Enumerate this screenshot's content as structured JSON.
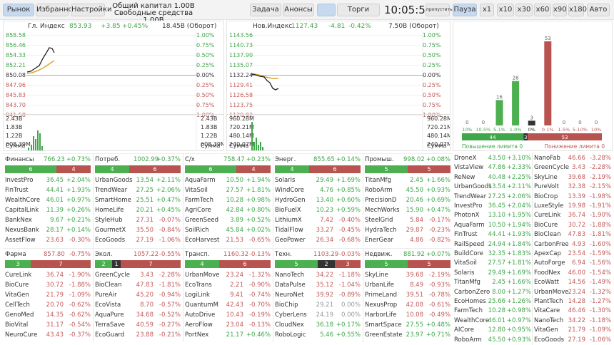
{
  "toolbar": {
    "market": "Рынок",
    "favorites": "Избранное",
    "settings": "Настройки",
    "capital_label": "Общий капитал",
    "capital_value": "1.00B",
    "free_label": "Свободные средства",
    "free_value": "1.00B",
    "task": "Задача",
    "announce": "Анонсы",
    "trading": "Торги",
    "clock": "10:05:55",
    "skip": "пропустить",
    "pause": "Пауза",
    "speeds": [
      "x1",
      "x10",
      "x30",
      "x60",
      "x90",
      "x180"
    ],
    "auto": "Авто"
  },
  "charts": [
    {
      "name": "Гл. Индекс",
      "value": "853.93",
      "change": "+3.85",
      "pct": "+0.45%",
      "turnover": "18.45B (Оборот)",
      "prices": [
        "858.58",
        "856.46",
        "854.33",
        "852.21",
        "850.08",
        "847.96",
        "845.83",
        "843.70",
        "841.58"
      ],
      "pcts": [
        "1.00%",
        "0.75%",
        "0.50%",
        "0.25%",
        "0.00%",
        "0.25%",
        "0.50%",
        "0.75%",
        "1.00%"
      ],
      "vols": [
        "2.43B",
        "1.83B",
        "1.22B",
        "608.39M"
      ],
      "vol_label": "Сумма"
    },
    {
      "name": "Нов.Индекс",
      "value": "1127.43",
      "change": "-4.81",
      "pct": "-0.42%",
      "turnover": "7.50B (Оборот)",
      "prices": [
        "1143.56",
        "1140.73",
        "1137.90",
        "1135.07",
        "1132.24",
        "1129.41",
        "1126.58",
        "1123.75",
        "1120.92"
      ],
      "pcts": [
        "1.00%",
        "0.75%",
        "0.50%",
        "0.25%",
        "0.00%",
        "0.25%",
        "0.50%",
        "0.75%",
        "1.00%"
      ],
      "vols": [
        "960.28M",
        "720.21M",
        "480.14M",
        "240.07M"
      ],
      "vol_label": "Сумма"
    }
  ],
  "chart_data": {
    "type": "bar",
    "categories": [
      "10%",
      "10-5%",
      "5-1%",
      "1-0%",
      "0%",
      "0-1%",
      "1-5%",
      "5-10%",
      "10%"
    ],
    "values": [
      0,
      0,
      16,
      28,
      3,
      53,
      0,
      0,
      0
    ],
    "colors": [
      "#4caf50",
      "#4caf50",
      "#4caf50",
      "#4caf50",
      "#333333",
      "#b85450",
      "#b85450",
      "#b85450",
      "#b85450"
    ],
    "summary": {
      "up": "44",
      "flat": "3",
      "down": "53"
    },
    "up_label": "Повышение лимита 0",
    "down_label": "Понижение лимита 0"
  },
  "sectors": [
    {
      "name": "Финансы",
      "value": "766.23",
      "pct": "+0.73%",
      "up": "6",
      "flat": "",
      "down": "4",
      "stocks": [
        [
          "InvestPro",
          "36.45",
          "+2.04%"
        ],
        [
          "FinTrust",
          "44.41",
          "+1.93%"
        ],
        [
          "WealthCore",
          "46.01",
          "+0.97%"
        ],
        [
          "CapitalLink",
          "11.39",
          "+0.26%"
        ],
        [
          "BankNex",
          "9.67",
          "+0.21%"
        ],
        [
          "NexusBank",
          "28.17",
          "+0.14%"
        ],
        [
          "AssetFlow",
          "23.63",
          "-0.30%"
        ]
      ]
    },
    {
      "name": "Потреб.",
      "value": "1002.99",
      "pct": "+0.37%",
      "up": "4",
      "flat": "",
      "down": "6",
      "stocks": [
        [
          "UrbanGoods",
          "13.54",
          "+2.11%"
        ],
        [
          "TrendWear",
          "27.25",
          "+2.06%"
        ],
        [
          "SmartHome",
          "25.51",
          "+0.47%"
        ],
        [
          "HomeLife",
          "20.21",
          "+0.45%"
        ],
        [
          "StyleHub",
          "27.31",
          "-0.07%"
        ],
        [
          "GourmetX",
          "35.50",
          "-0.84%"
        ],
        [
          "EcoGoods",
          "27.19",
          "-1.06%"
        ]
      ]
    },
    {
      "name": "С/х",
      "value": "758.47",
      "pct": "+0.23%",
      "up": "6",
      "flat": "",
      "down": "4",
      "stocks": [
        [
          "AquaFarm",
          "10.50",
          "+1.94%"
        ],
        [
          "VitaSoil",
          "27.57",
          "+1.81%"
        ],
        [
          "FarmTech",
          "10.28",
          "+0.98%"
        ],
        [
          "AgriCore",
          "42.84",
          "+0.80%"
        ],
        [
          "GreenSeed",
          "3.89",
          "+0.52%"
        ],
        [
          "SoilRich",
          "45.84",
          "+0.02%"
        ],
        [
          "EcoHarvest",
          "21.53",
          "-0.65%"
        ]
      ]
    },
    {
      "name": "Энерг.",
      "value": "855.65",
      "pct": "+0.14%",
      "up": "4",
      "flat": "",
      "down": "6",
      "stocks": [
        [
          "Solaris",
          "29.49",
          "+1.69%"
        ],
        [
          "WindCore",
          "4.76",
          "+0.85%"
        ],
        [
          "HydroGen",
          "13.40",
          "+0.60%"
        ],
        [
          "BioFuelX",
          "10.23",
          "+0.59%"
        ],
        [
          "LithiumX",
          "7.42",
          "-0.40%"
        ],
        [
          "TidalFlow",
          "33.27",
          "-0.45%"
        ],
        [
          "GeoPower",
          "26.34",
          "-0.68%"
        ]
      ]
    },
    {
      "name": "Промыш.",
      "value": "998.02",
      "pct": "+0.08%",
      "up": "5",
      "flat": "",
      "down": "5",
      "stocks": [
        [
          "TitanMfg",
          "2.45",
          "+1.66%"
        ],
        [
          "RoboArm",
          "45.50",
          "+0.93%"
        ],
        [
          "PrecisionD",
          "20.46",
          "+0.69%"
        ],
        [
          "MechWorks",
          "15.90",
          "+0.47%"
        ],
        [
          "SteelGrid",
          "5.84",
          "-0.17%"
        ],
        [
          "HydraTech",
          "29.87",
          "-0.23%"
        ],
        [
          "EnerGear",
          "4.86",
          "-0.82%"
        ]
      ]
    },
    {
      "name": "Фарма",
      "value": "857.80",
      "pct": "-0.75%",
      "up": "3",
      "flat": "",
      "down": "7",
      "stocks": [
        [
          "CureLink",
          "36.74",
          "-1.90%"
        ],
        [
          "BioCure",
          "30.72",
          "-1.88%"
        ],
        [
          "VitaGen",
          "21.79",
          "-1.09%"
        ],
        [
          "CellTech",
          "20.70",
          "-0.62%"
        ],
        [
          "GenoMed",
          "14.35",
          "-0.62%"
        ],
        [
          "BioVital",
          "31.17",
          "-0.54%"
        ],
        [
          "NeuroCure",
          "43.43",
          "-0.37%"
        ]
      ]
    },
    {
      "name": "Экол.",
      "value": "1057.22",
      "pct": "-0.55%",
      "up": "2",
      "flat": "1",
      "down": "7",
      "stocks": [
        [
          "GreenCycle",
          "3.43",
          "-2.28%"
        ],
        [
          "BioClean",
          "47.83",
          "-1.81%"
        ],
        [
          "PureAir",
          "45.20",
          "-0.94%"
        ],
        [
          "EcoVista",
          "8.70",
          "-0.57%"
        ],
        [
          "AquaPure",
          "34.68",
          "-0.52%"
        ],
        [
          "TerraSave",
          "40.59",
          "-0.27%"
        ],
        [
          "EcoGuard",
          "23.88",
          "-0.21%"
        ]
      ]
    },
    {
      "name": "Трансп.",
      "value": "1160.32",
      "pct": "-0.13%",
      "up": "4",
      "flat": "",
      "down": "6",
      "stocks": [
        [
          "UrbanMove",
          "23.24",
          "-1.32%"
        ],
        [
          "EcoTrans",
          "2.21",
          "-0.90%"
        ],
        [
          "LogiLink",
          "9.41",
          "-0.74%"
        ],
        [
          "QuantumM",
          "42.43",
          "-0.70%"
        ],
        [
          "AutoDrive",
          "10.43",
          "-0.19%"
        ],
        [
          "AeroFlow",
          "23.04",
          "-0.13%"
        ],
        [
          "PortNex",
          "21.17",
          "+0.46%"
        ]
      ]
    },
    {
      "name": "Техн.",
      "value": "1103.29",
      "pct": "-0.03%",
      "up": "5",
      "flat": "2",
      "down": "3",
      "stocks": [
        [
          "NanoTech",
          "34.22",
          "-1.18%"
        ],
        [
          "DataPulse",
          "35.12",
          "-1.04%"
        ],
        [
          "NeuroNet",
          "39.92",
          "-0.89%"
        ],
        [
          "BioChip",
          "29.21",
          "0.00%"
        ],
        [
          "CyberLens",
          "24.19",
          "0.00%"
        ],
        [
          "CloudNex",
          "36.18",
          "+0.17%"
        ],
        [
          "RoboLogic",
          "5.46",
          "+0.55%"
        ]
      ]
    },
    {
      "name": "Недвиж.",
      "value": "881.92",
      "pct": "+0.07%",
      "up": "5",
      "flat": "",
      "down": "5",
      "stocks": [
        [
          "SkyLine",
          "39.68",
          "-2.19%"
        ],
        [
          "UrbanLife",
          "8.49",
          "-0.93%"
        ],
        [
          "PrimeLand",
          "39.51",
          "-0.78%"
        ],
        [
          "NexusProp",
          "42.08",
          "-0.61%"
        ],
        [
          "HarborLife",
          "10.08",
          "-0.49%"
        ],
        [
          "SmartSpace",
          "27.55",
          "+0.48%"
        ],
        [
          "GreenEstate",
          "23.97",
          "+0.71%"
        ]
      ]
    }
  ],
  "top_gainers": [
    [
      "DroneX",
      "43.50",
      "+3.10%"
    ],
    [
      "VistaView",
      "47.86",
      "+2.33%"
    ],
    [
      "ReNew",
      "40.48",
      "+2.25%"
    ],
    [
      "UrbanGoods",
      "13.54",
      "+2.11%"
    ],
    [
      "TrendWear",
      "27.25",
      "+2.06%"
    ],
    [
      "InvestPro",
      "36.45",
      "+2.04%"
    ],
    [
      "PhotonX",
      "13.10",
      "+1.95%"
    ],
    [
      "AquaFarm",
      "10.50",
      "+1.94%"
    ],
    [
      "FinTrust",
      "44.41",
      "+1.93%"
    ],
    [
      "RailSpeed",
      "24.94",
      "+1.84%"
    ],
    [
      "BuildCore",
      "32.35",
      "+1.83%"
    ],
    [
      "VitaSoil",
      "27.57",
      "+1.81%"
    ],
    [
      "Solaris",
      "29.49",
      "+1.69%"
    ],
    [
      "TitanMfg",
      "2.45",
      "+1.66%"
    ],
    [
      "CarbonZero",
      "8.00",
      "+1.27%"
    ],
    [
      "EcoHomes",
      "25.66",
      "+1.26%"
    ],
    [
      "FarmTech",
      "10.28",
      "+0.98%"
    ],
    [
      "WealthCore",
      "46.01",
      "+0.97%"
    ],
    [
      "AICore",
      "12.80",
      "+0.95%"
    ],
    [
      "RoboArm",
      "45.50",
      "+0.93%"
    ]
  ],
  "top_losers": [
    [
      "NanoFab",
      "46.66",
      "-3.28%"
    ],
    [
      "GreenCycle",
      "3.43",
      "-2.28%"
    ],
    [
      "SkyLine",
      "39.68",
      "-2.19%"
    ],
    [
      "PureVolt",
      "32.38",
      "-2.15%"
    ],
    [
      "BioCrop",
      "13.39",
      "-1.98%"
    ],
    [
      "LuxeStyle",
      "19.98",
      "-1.91%"
    ],
    [
      "CureLink",
      "36.74",
      "-1.90%"
    ],
    [
      "BioCure",
      "30.72",
      "-1.88%"
    ],
    [
      "BioClean",
      "47.83",
      "-1.81%"
    ],
    [
      "CarbonFree",
      "4.93",
      "-1.60%"
    ],
    [
      "ApexCap",
      "23.54",
      "-1.59%"
    ],
    [
      "AutoForge",
      "6.94",
      "-1.56%"
    ],
    [
      "FoodNex",
      "46.00",
      "-1.54%"
    ],
    [
      "EcoWatt",
      "14.56",
      "-1.49%"
    ],
    [
      "UrbanMove",
      "23.24",
      "-1.32%"
    ],
    [
      "PlantTech",
      "14.28",
      "-1.27%"
    ],
    [
      "VitaCare",
      "46.46",
      "-1.30%"
    ],
    [
      "NanoTech",
      "34.22",
      "-1.18%"
    ],
    [
      "VitaGen",
      "21.79",
      "-1.09%"
    ],
    [
      "EcoGoods",
      "27.19",
      "-1.06%"
    ]
  ]
}
